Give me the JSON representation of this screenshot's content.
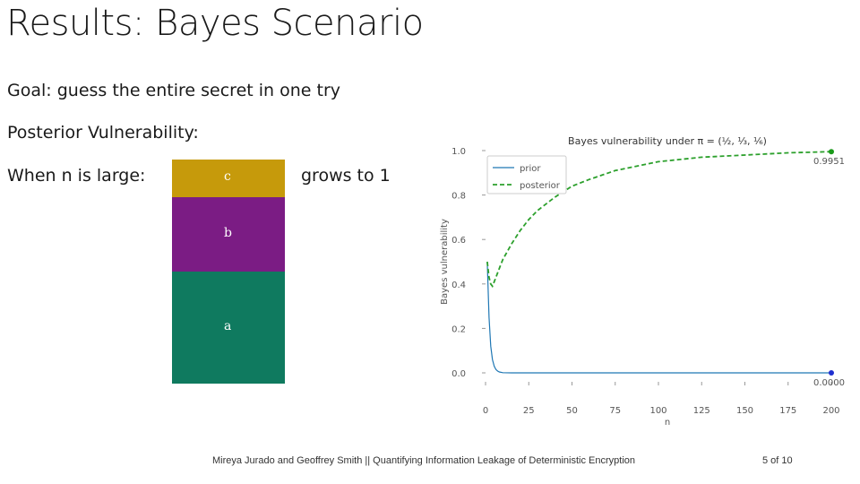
{
  "slide": {
    "title": "Results: Bayes Scenario",
    "goal": "Goal: guess the entire secret in one try",
    "posterior_label": "Posterior Vulnerability:",
    "when_label": "When n is large:",
    "grows_label": "grows to 1",
    "segments": [
      {
        "label": "c",
        "color": "#c69a0b",
        "fraction": 0.166
      },
      {
        "label": "b",
        "color": "#7b1c84",
        "fraction": 0.333
      },
      {
        "label": "a",
        "color": "#0f7a5f",
        "fraction": 0.501
      }
    ]
  },
  "footer": {
    "citation": "Mireya Jurado and Geoffrey Smith || Quantifying Information Leakage of Deterministic Encryption",
    "page": "5 of 10"
  },
  "chart_data": {
    "type": "line",
    "title": "Bayes vulnerability under π = (½, ⅓, ⅙)",
    "xlabel": "n",
    "ylabel": "Bayes vulnerability",
    "xlim": [
      0,
      200
    ],
    "ylim": [
      0,
      1.0
    ],
    "xticks": [
      0,
      25,
      50,
      75,
      100,
      125,
      150,
      175,
      200
    ],
    "yticks": [
      0.0,
      0.2,
      0.4,
      0.6,
      0.8,
      1.0
    ],
    "legend": "top-left",
    "series": [
      {
        "name": "prior",
        "color": "#1f77b4",
        "style": "solid",
        "x": [
          1,
          2,
          3,
          4,
          5,
          6,
          7,
          8,
          10,
          15,
          20,
          50,
          100,
          150,
          200
        ],
        "y": [
          0.5,
          0.25,
          0.12,
          0.06,
          0.03,
          0.015,
          0.008,
          0.004,
          0.001,
          0.0,
          0.0,
          0.0,
          0.0,
          0.0,
          0.0
        ]
      },
      {
        "name": "posterior",
        "color": "#2ca02c",
        "style": "dashed",
        "x": [
          1,
          2,
          3,
          4,
          5,
          6,
          8,
          10,
          15,
          20,
          25,
          30,
          40,
          50,
          60,
          75,
          100,
          125,
          150,
          175,
          200
        ],
        "y": [
          0.5,
          0.43,
          0.4,
          0.39,
          0.41,
          0.43,
          0.47,
          0.51,
          0.58,
          0.64,
          0.69,
          0.73,
          0.79,
          0.84,
          0.87,
          0.91,
          0.95,
          0.97,
          0.98,
          0.99,
          0.9951
        ]
      }
    ],
    "annotations": [
      {
        "text": "0.9951",
        "x": 200,
        "y": 0.9951,
        "series": "posterior"
      },
      {
        "text": "0.0000",
        "x": 200,
        "y": 0.0,
        "series": "prior"
      }
    ]
  }
}
